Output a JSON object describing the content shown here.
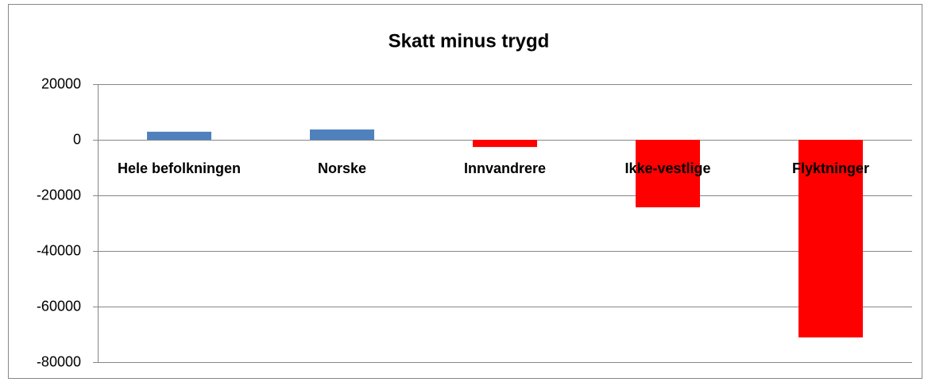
{
  "chart_data": {
    "type": "bar",
    "title": "Skatt minus trygd",
    "categories": [
      "Hele befolkningen",
      "Norske",
      "Innvandrere",
      "Ikke-vestlige",
      "Flyktninger"
    ],
    "values": [
      2900,
      3700,
      -2600,
      -24300,
      -71100
    ],
    "colors": [
      "#4f81bd",
      "#4f81bd",
      "#ff0000",
      "#ff0000",
      "#ff0000"
    ],
    "ylim": [
      -80000,
      20000
    ],
    "yticks": [
      -80000,
      -60000,
      -40000,
      -20000,
      0,
      20000
    ],
    "grid": true
  }
}
